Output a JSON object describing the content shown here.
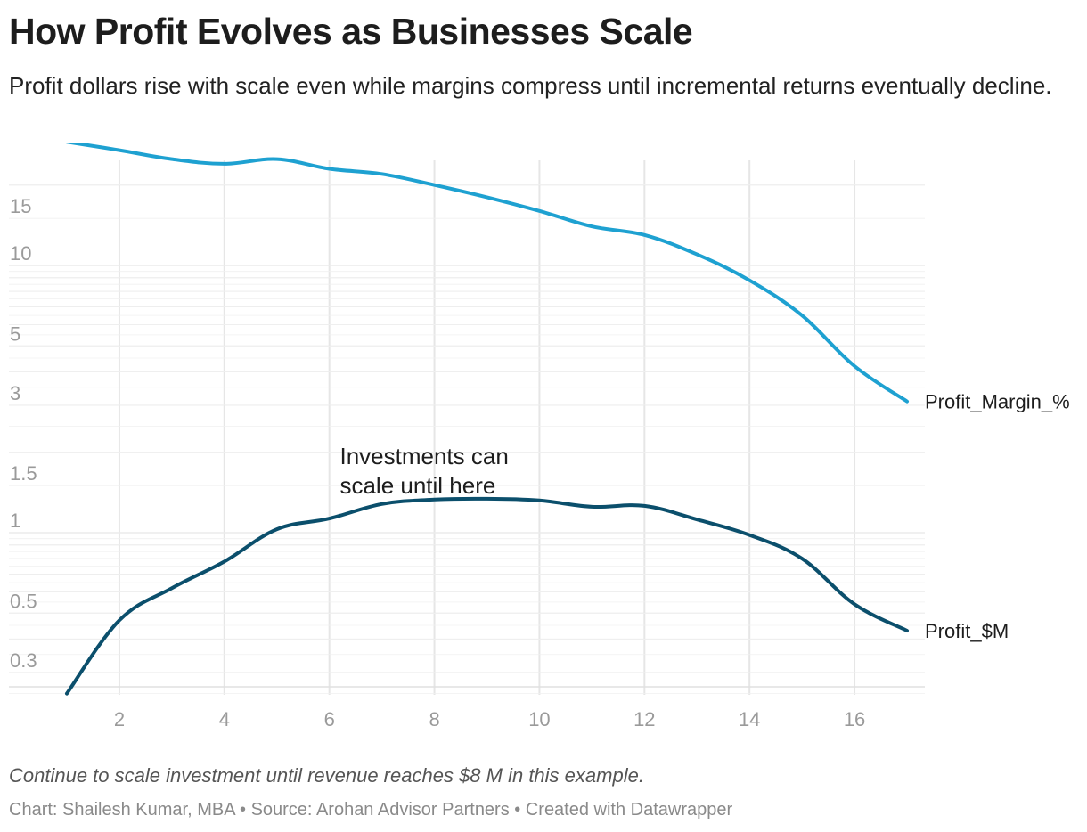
{
  "header": {
    "title": "How Profit Evolves as Businesses Scale",
    "subtitle": "Profit dollars rise with scale even while margins compress until incremental returns eventually decline."
  },
  "footer": {
    "notes": "Continue to scale investment until revenue reaches $8 M in this example.",
    "byline": "Chart: Shailesh Kumar, MBA • Source: Arohan Advisor Partners • Created with Datawrapper"
  },
  "colors": {
    "profit_margin": "#1ea1d1",
    "profit_dollars": "#0b4f6c",
    "grid": "#e6e6e6"
  },
  "chart_data": {
    "type": "line",
    "title": "How Profit Evolves as Businesses Scale",
    "y_scale": "log",
    "grid": true,
    "x": [
      1,
      2,
      3,
      4,
      5,
      6,
      7,
      8,
      9,
      10,
      11,
      12,
      13,
      14,
      15,
      16,
      17
    ],
    "x_ticks": [
      "2",
      "4",
      "6",
      "8",
      "10",
      "12",
      "14",
      "16"
    ],
    "x_tick_values": [
      2,
      4,
      6,
      8,
      10,
      12,
      14,
      16
    ],
    "xlim": [
      1,
      17
    ],
    "y_ticks": [
      "15",
      "10",
      "5",
      "3",
      "1.5",
      "1",
      "0.5",
      "0.3"
    ],
    "y_tick_values": [
      15,
      10,
      5,
      3,
      1.5,
      1,
      0.5,
      0.3
    ],
    "ylim": [
      0.25,
      30
    ],
    "series": [
      {
        "name": "Profit_Margin_%",
        "values": [
          29,
          27,
          25,
          24,
          25,
          23,
          22,
          20,
          18,
          16,
          14,
          13,
          11,
          8.8,
          6.5,
          4.2,
          3.1
        ]
      },
      {
        "name": "Profit_$M",
        "values": [
          0.25,
          0.47,
          0.62,
          0.78,
          1.03,
          1.13,
          1.28,
          1.33,
          1.34,
          1.32,
          1.25,
          1.26,
          1.12,
          0.98,
          0.8,
          0.54,
          0.43
        ]
      }
    ],
    "annotations": [
      {
        "text": "Investments can scale until here",
        "lines": [
          "Investments can",
          "scale until here"
        ],
        "x": 6.2,
        "y": 1.95
      }
    ]
  }
}
